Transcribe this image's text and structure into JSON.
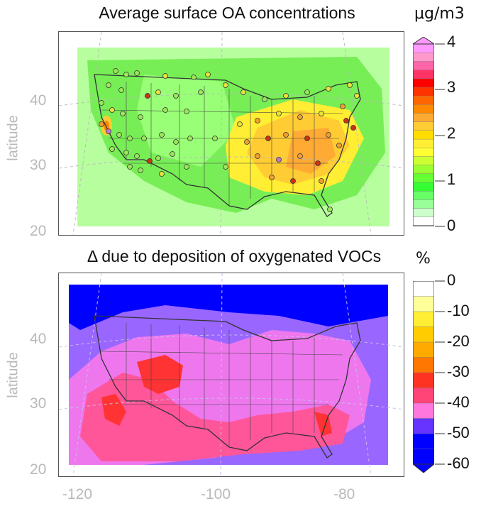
{
  "top_panel": {
    "title": "Average surface OA concentrations",
    "unit": "μg/m3",
    "colorbar": {
      "labels": [
        "4",
        "3",
        "2",
        "1",
        "0"
      ],
      "colors": [
        "#ffffff",
        "#ccffcc",
        "#99ff99",
        "#66ff66",
        "#33ff33",
        "#66ff33",
        "#99ff33",
        "#ccff33",
        "#ffff33",
        "#ffee33",
        "#ffdd00",
        "#ffcc33",
        "#ffaa33",
        "#ff8800",
        "#ff6600",
        "#ff3300",
        "#ff0000",
        "#ff3366",
        "#ff66aa",
        "#ff99cc",
        "#ff99ff"
      ]
    },
    "station_colors": {
      "low": "#9be65a",
      "mid": "#e8e23a",
      "high": "#f0a030",
      "very_high": "#cc3311",
      "peak": "#bb77cc"
    }
  },
  "bottom_panel": {
    "title": "Δ due to deposition of oxygenated VOCs",
    "unit": "%",
    "colorbar": {
      "labels": [
        "0",
        "-10",
        "-20",
        "-30",
        "-40",
        "-50",
        "-60"
      ],
      "colors": [
        "#ffffff",
        "#ffff99",
        "#ffee33",
        "#ffcc00",
        "#ffaa00",
        "#ff7700",
        "#ff3322",
        "#ff4477",
        "#ff77dd",
        "#6633ff",
        "#0000ff",
        "#0000ff"
      ]
    }
  },
  "axes": {
    "ylabel": "latitude",
    "lat_ticks": [
      "40",
      "30",
      "20"
    ],
    "lon_ticks": [
      "-120",
      "-100",
      "-80"
    ]
  },
  "colors": {
    "top_background": "#aaff99",
    "bottom_background": "#ff99ee",
    "axis_text": "#b9b9b9"
  }
}
